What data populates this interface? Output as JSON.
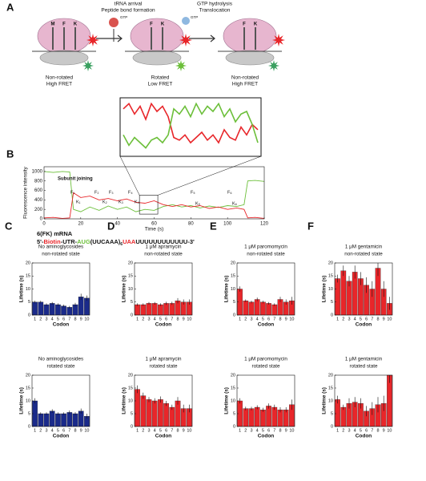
{
  "diagram": {
    "panel": "A",
    "step1_line1": "tRNA arrival",
    "step1_line2": "Peptide bond formation",
    "step2_line1": "GTP hydrolysis",
    "step2_line2": "Translocation",
    "gtp1": "GTP",
    "gtp2": "GTP",
    "state1_line1": "Non-rotated",
    "state1_line2": "High FRET",
    "state2_line1": "Rotated",
    "state2_line2": "Low FRET",
    "state3_line1": "Non-rotated",
    "state3_line2": "High FRET",
    "sites1": [
      "M",
      "F",
      "K"
    ],
    "sites2": [
      "F",
      "K"
    ],
    "sites3": [
      "F",
      "K"
    ],
    "site_colors": [
      "#6cbf3a",
      "#222222",
      "#222222"
    ]
  },
  "trace_panel": "B",
  "mrna": {
    "title": "6(FK) mRNA",
    "sequence": [
      {
        "text": "5'-",
        "color": "#111111"
      },
      {
        "text": "Biotin",
        "color": "#e8262a"
      },
      {
        "text": "-UTR-",
        "color": "#111111"
      },
      {
        "text": "AUG",
        "color": "#6cbf3a"
      },
      {
        "text": "(UUCAAA)",
        "color": "#111111"
      },
      {
        "text": "6",
        "color": "#111111",
        "subscript": true
      },
      {
        "text": "UAA",
        "color": "#e8262a"
      },
      {
        "text": "UUUUUUUUUUUU-3'",
        "color": "#111111"
      }
    ]
  },
  "chart_data": [
    {
      "type": "line",
      "xlabel": "Time (s)",
      "ylabel": "Fluorescence intensity",
      "annotations": [
        "Subunit joining",
        "F₁",
        "K₁",
        "F₂",
        "K₂",
        "F₃",
        "K₃",
        "F₄",
        "K₄",
        "F₅",
        "K₅",
        "F₆",
        "K₆"
      ],
      "x": [
        0,
        5,
        10,
        14,
        16,
        20,
        25,
        30,
        35,
        40,
        45,
        50,
        55,
        60,
        65,
        70,
        75,
        80,
        85,
        90,
        95,
        100,
        105,
        109,
        111,
        115,
        120
      ],
      "series": [
        {
          "name": "Cy3",
          "color": "#6cbf3a",
          "values": [
            1000,
            980,
            1000,
            990,
            200,
            150,
            250,
            180,
            270,
            200,
            250,
            150,
            200,
            180,
            260,
            300,
            250,
            280,
            230,
            270,
            240,
            280,
            260,
            300,
            800,
            810,
            790
          ]
        },
        {
          "name": "Cy5",
          "color": "#e8262a",
          "values": [
            20,
            30,
            10,
            20,
            550,
            450,
            480,
            400,
            430,
            380,
            420,
            350,
            330,
            380,
            300,
            260,
            300,
            250,
            280,
            220,
            250,
            200,
            230,
            200,
            20,
            30,
            10
          ]
        }
      ],
      "xlim": [
        0,
        120
      ],
      "xticks": [
        0,
        20,
        40,
        60,
        80,
        100,
        120
      ],
      "ylim": [
        0,
        1100
      ],
      "yticks": [
        0,
        200,
        400,
        600,
        800,
        1000
      ]
    },
    {
      "type": "inset",
      "series": [
        {
          "name": "Cy5",
          "color": "#e8262a",
          "values": [
            0.85,
            0.95,
            0.75,
            0.9,
            0.65,
            0.95,
            0.8,
            0.9,
            0.7,
            0.3,
            0.25,
            0.35,
            0.2,
            0.3,
            0.4,
            0.25,
            0.35,
            0.2,
            0.45,
            0.3,
            0.25,
            0.5,
            0.35,
            0.55,
            0.45
          ]
        },
        {
          "name": "Cy3",
          "color": "#6cbf3a",
          "values": [
            0.35,
            0.15,
            0.3,
            0.2,
            0.1,
            0.25,
            0.3,
            0.2,
            0.35,
            0.85,
            0.75,
            0.9,
            0.7,
            0.95,
            0.75,
            0.9,
            0.8,
            0.95,
            0.7,
            0.85,
            0.6,
            0.75,
            0.8,
            0.55,
            0.2
          ]
        }
      ]
    },
    {
      "type": "bar",
      "panel": "C",
      "title": "No aminoglycosides",
      "subtitle": "non-rotated state",
      "xlabel": "Codon",
      "ylabel": "Lifetime (s)",
      "color": "#1a2a8a",
      "categories": [
        "1",
        "2",
        "3",
        "4",
        "5",
        "6",
        "7",
        "8",
        "9",
        "10"
      ],
      "values": [
        5,
        5,
        4,
        4.5,
        4,
        3.5,
        3,
        4,
        7,
        6.5
      ],
      "errors": [
        0.5,
        0.5,
        0.5,
        0.5,
        0.5,
        0.5,
        0.5,
        0.7,
        1.2,
        1
      ],
      "ylim": [
        0,
        20
      ],
      "yticks": [
        0,
        5,
        10,
        15,
        20
      ]
    },
    {
      "type": "bar",
      "title": "No aminoglycosides",
      "subtitle": "rotated state",
      "xlabel": "Codon",
      "ylabel": "Lifetime (s)",
      "color": "#1a2a8a",
      "categories": [
        "1",
        "2",
        "3",
        "4",
        "5",
        "6",
        "7",
        "8",
        "9",
        "10"
      ],
      "values": [
        10,
        5,
        5,
        6,
        5,
        5,
        5.5,
        5,
        6,
        4
      ],
      "errors": [
        1,
        0.5,
        0.5,
        0.7,
        0.5,
        0.5,
        0.7,
        0.6,
        1,
        1
      ],
      "ylim": [
        0,
        20
      ],
      "yticks": [
        0,
        5,
        10,
        15,
        20
      ]
    },
    {
      "type": "bar",
      "panel": "D",
      "title": "1 μM apramycin",
      "subtitle": "non-rotated state",
      "xlabel": "Codon",
      "ylabel": "Lifetime (s)",
      "color": "#e8262a",
      "categories": [
        "1",
        "2",
        "3",
        "4",
        "5",
        "6",
        "7",
        "8",
        "9",
        "10"
      ],
      "values": [
        4,
        4,
        4.5,
        4.5,
        4,
        4.5,
        4.5,
        5.5,
        5,
        5
      ],
      "errors": [
        0.5,
        0.5,
        0.5,
        0.5,
        0.5,
        0.6,
        0.6,
        1,
        1,
        1
      ],
      "ylim": [
        0,
        20
      ],
      "yticks": [
        0,
        5,
        10,
        15,
        20
      ]
    },
    {
      "type": "bar",
      "title": "1 μM apramycin",
      "subtitle": "rotated state",
      "xlabel": "Codon",
      "ylabel": "Lifetime (s)",
      "color": "#e8262a",
      "categories": [
        "1",
        "2",
        "3",
        "4",
        "5",
        "6",
        "7",
        "8",
        "9",
        "10"
      ],
      "values": [
        14.5,
        12,
        10.5,
        10,
        10.5,
        9,
        7.5,
        10,
        7,
        7
      ],
      "errors": [
        1.5,
        1.2,
        1,
        1,
        1.2,
        1,
        1,
        1.5,
        1.5,
        1.5
      ],
      "ylim": [
        0,
        20
      ],
      "yticks": [
        0,
        5,
        10,
        15,
        20
      ]
    },
    {
      "type": "bar",
      "panel": "E",
      "title": "1 μM paromomycin",
      "subtitle": "non-rotated state",
      "xlabel": "Codon",
      "ylabel": "Lifetime (s)",
      "color": "#e8262a",
      "categories": [
        "1",
        "2",
        "3",
        "4",
        "5",
        "6",
        "7",
        "8",
        "9",
        "10"
      ],
      "values": [
        10,
        5.5,
        5,
        6,
        5,
        4.5,
        4,
        6,
        5,
        5.5
      ],
      "errors": [
        1,
        0.5,
        0.5,
        0.7,
        0.5,
        0.5,
        0.5,
        1,
        1,
        1.5
      ],
      "ylim": [
        0,
        20
      ],
      "yticks": [
        0,
        5,
        10,
        15,
        20
      ]
    },
    {
      "type": "bar",
      "title": "1 μM paromomycin",
      "subtitle": "rotated state",
      "xlabel": "Codon",
      "ylabel": "Lifetime (s)",
      "color": "#e8262a",
      "categories": [
        "1",
        "2",
        "3",
        "4",
        "5",
        "6",
        "7",
        "8",
        "9",
        "10"
      ],
      "values": [
        10,
        7,
        7,
        7.5,
        6.5,
        8,
        7.5,
        6.5,
        6.5,
        8.5
      ],
      "errors": [
        1,
        0.7,
        0.7,
        0.8,
        0.8,
        1,
        1,
        1,
        1,
        2
      ],
      "ylim": [
        0,
        20
      ],
      "yticks": [
        0,
        5,
        10,
        15,
        20
      ]
    },
    {
      "type": "bar",
      "panel": "F",
      "title": "1 μM gentamicin",
      "subtitle": "non-rotated state",
      "xlabel": "Codon",
      "ylabel": "Lifetime (s)",
      "color": "#e8262a",
      "categories": [
        "1",
        "2",
        "3",
        "4",
        "5",
        "6",
        "7",
        "8",
        "9",
        "10"
      ],
      "values": [
        14,
        17,
        13,
        16.5,
        14,
        11.5,
        10,
        18,
        10,
        4.5
      ],
      "errors": [
        1.5,
        2,
        2,
        2.5,
        2.5,
        3,
        3,
        3,
        3,
        2.5
      ],
      "ylim": [
        0,
        20
      ],
      "yticks": [
        0,
        5,
        10,
        15,
        20
      ]
    },
    {
      "type": "bar",
      "title": "1 μM gentamicin",
      "subtitle": "rotated state",
      "xlabel": "Codon",
      "ylabel": "Lifetime (s)",
      "color": "#e8262a",
      "categories": [
        "1",
        "2",
        "3",
        "4",
        "5",
        "6",
        "7",
        "8",
        "9",
        "10"
      ],
      "values": [
        10.5,
        7.5,
        9,
        9.5,
        9,
        6,
        7,
        8.5,
        9,
        20
      ],
      "errors": [
        1.5,
        1,
        2,
        2,
        2,
        2,
        2.5,
        3,
        3,
        3
      ],
      "ylim": [
        0,
        20
      ],
      "yticks": [
        0,
        5,
        10,
        15,
        20
      ]
    }
  ]
}
